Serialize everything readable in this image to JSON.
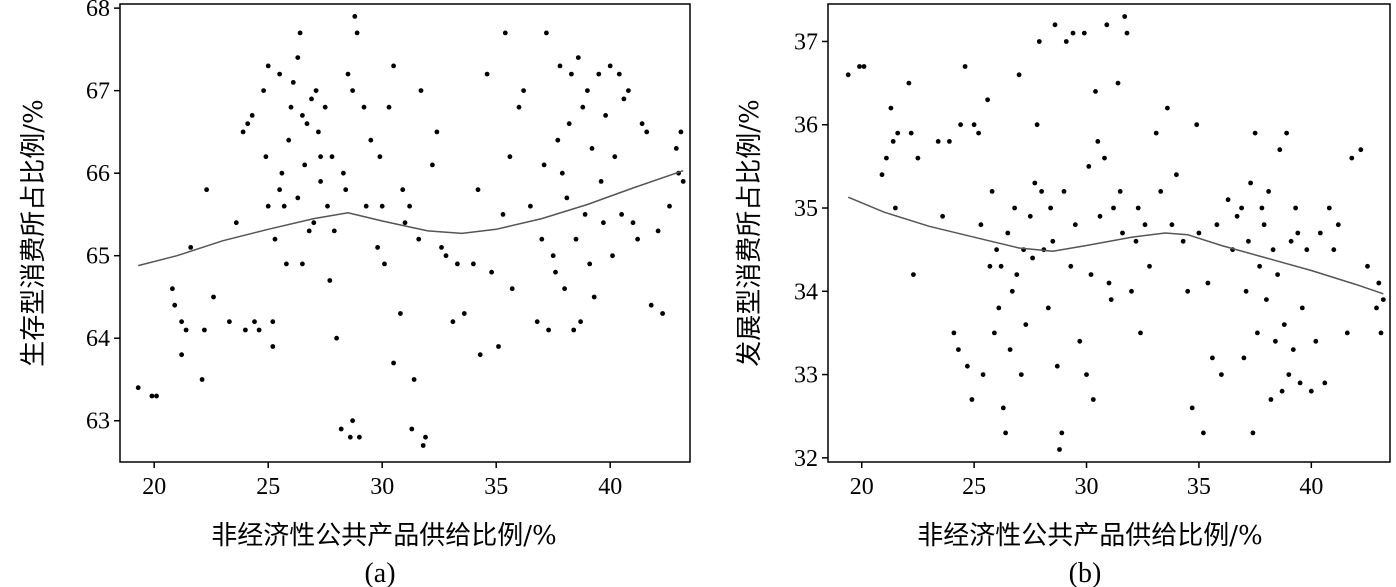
{
  "chart_data": [
    {
      "type": "scatter",
      "panel_label": "(a)",
      "xlabel": "非经济性公共产品供给比例/%",
      "ylabel": "生存型消费所占比例/%",
      "xlim": [
        18.5,
        43.5
      ],
      "ylim": [
        62.5,
        68.05
      ],
      "x_ticks": [
        20,
        25,
        30,
        35,
        40
      ],
      "y_ticks": [
        63,
        64,
        65,
        66,
        67,
        68
      ],
      "grid": false,
      "points": [
        [
          19.3,
          63.4
        ],
        [
          19.9,
          63.3
        ],
        [
          20.1,
          63.3
        ],
        [
          20.8,
          64.6
        ],
        [
          20.9,
          64.4
        ],
        [
          21.2,
          64.2
        ],
        [
          21.4,
          64.1
        ],
        [
          21.2,
          63.8
        ],
        [
          21.6,
          65.1
        ],
        [
          22.2,
          64.1
        ],
        [
          22.3,
          65.8
        ],
        [
          22.1,
          63.5
        ],
        [
          22.6,
          64.5
        ],
        [
          23.3,
          64.2
        ],
        [
          23.6,
          65.4
        ],
        [
          24.0,
          64.1
        ],
        [
          23.9,
          66.5
        ],
        [
          24.1,
          66.6
        ],
        [
          24.3,
          66.7
        ],
        [
          24.4,
          64.2
        ],
        [
          24.6,
          64.1
        ],
        [
          24.8,
          67.0
        ],
        [
          24.9,
          66.2
        ],
        [
          25.0,
          65.6
        ],
        [
          25.0,
          67.3
        ],
        [
          25.2,
          64.2
        ],
        [
          25.3,
          65.2
        ],
        [
          25.2,
          63.9
        ],
        [
          25.5,
          65.8
        ],
        [
          25.6,
          66.0
        ],
        [
          25.5,
          67.2
        ],
        [
          25.7,
          65.6
        ],
        [
          25.8,
          64.9
        ],
        [
          25.9,
          66.4
        ],
        [
          26.0,
          66.8
        ],
        [
          26.1,
          67.1
        ],
        [
          26.3,
          67.4
        ],
        [
          26.3,
          65.7
        ],
        [
          26.4,
          67.7
        ],
        [
          26.5,
          66.7
        ],
        [
          26.6,
          66.1
        ],
        [
          26.5,
          64.9
        ],
        [
          26.7,
          66.6
        ],
        [
          26.8,
          65.3
        ],
        [
          26.9,
          66.9
        ],
        [
          27.0,
          65.4
        ],
        [
          27.1,
          67.0
        ],
        [
          27.2,
          66.5
        ],
        [
          27.3,
          66.2
        ],
        [
          27.3,
          65.9
        ],
        [
          27.5,
          66.8
        ],
        [
          27.6,
          65.6
        ],
        [
          27.7,
          64.7
        ],
        [
          27.8,
          66.2
        ],
        [
          27.9,
          65.3
        ],
        [
          28.0,
          64.0
        ],
        [
          28.2,
          62.9
        ],
        [
          28.3,
          66.0
        ],
        [
          28.4,
          65.8
        ],
        [
          28.5,
          67.2
        ],
        [
          28.7,
          67.0
        ],
        [
          28.8,
          67.9
        ],
        [
          28.9,
          67.7
        ],
        [
          28.6,
          62.8
        ],
        [
          28.7,
          63.0
        ],
        [
          29.0,
          62.8
        ],
        [
          29.2,
          66.8
        ],
        [
          29.3,
          65.6
        ],
        [
          29.5,
          66.4
        ],
        [
          29.8,
          65.1
        ],
        [
          29.9,
          66.2
        ],
        [
          30.0,
          65.6
        ],
        [
          30.1,
          64.9
        ],
        [
          30.3,
          66.8
        ],
        [
          30.5,
          67.3
        ],
        [
          30.5,
          63.7
        ],
        [
          30.8,
          64.3
        ],
        [
          30.9,
          65.8
        ],
        [
          31.0,
          65.4
        ],
        [
          31.2,
          65.6
        ],
        [
          31.4,
          63.5
        ],
        [
          31.3,
          62.9
        ],
        [
          31.7,
          67.0
        ],
        [
          31.8,
          62.7
        ],
        [
          31.9,
          62.8
        ],
        [
          31.6,
          65.2
        ],
        [
          32.2,
          66.1
        ],
        [
          32.4,
          66.5
        ],
        [
          32.6,
          65.1
        ],
        [
          32.8,
          65.0
        ],
        [
          33.1,
          64.2
        ],
        [
          33.3,
          64.9
        ],
        [
          33.6,
          64.3
        ],
        [
          34.0,
          64.9
        ],
        [
          34.2,
          65.8
        ],
        [
          34.3,
          63.8
        ],
        [
          34.6,
          67.2
        ],
        [
          34.8,
          64.8
        ],
        [
          35.1,
          63.9
        ],
        [
          35.3,
          65.5
        ],
        [
          35.4,
          67.7
        ],
        [
          35.6,
          66.2
        ],
        [
          35.7,
          64.6
        ],
        [
          36.0,
          66.8
        ],
        [
          36.2,
          67.0
        ],
        [
          36.5,
          65.6
        ],
        [
          36.8,
          64.2
        ],
        [
          37.0,
          65.2
        ],
        [
          37.1,
          66.1
        ],
        [
          37.2,
          67.7
        ],
        [
          37.3,
          64.1
        ],
        [
          37.5,
          65.0
        ],
        [
          37.6,
          64.8
        ],
        [
          37.7,
          66.4
        ],
        [
          37.8,
          67.3
        ],
        [
          37.9,
          66.0
        ],
        [
          38.0,
          64.6
        ],
        [
          38.1,
          65.7
        ],
        [
          38.2,
          66.6
        ],
        [
          38.3,
          67.2
        ],
        [
          38.4,
          64.1
        ],
        [
          38.5,
          65.2
        ],
        [
          38.6,
          67.4
        ],
        [
          38.7,
          64.2
        ],
        [
          38.8,
          66.8
        ],
        [
          38.9,
          65.5
        ],
        [
          39.0,
          67.0
        ],
        [
          39.1,
          64.9
        ],
        [
          39.2,
          66.3
        ],
        [
          39.3,
          64.5
        ],
        [
          39.5,
          67.2
        ],
        [
          39.6,
          65.9
        ],
        [
          39.7,
          65.4
        ],
        [
          39.8,
          66.7
        ],
        [
          40.0,
          67.3
        ],
        [
          40.1,
          65.0
        ],
        [
          40.2,
          66.2
        ],
        [
          40.4,
          67.2
        ],
        [
          40.5,
          65.5
        ],
        [
          40.6,
          66.9
        ],
        [
          40.8,
          67.0
        ],
        [
          41.0,
          65.4
        ],
        [
          41.2,
          65.2
        ],
        [
          41.4,
          66.6
        ],
        [
          41.6,
          66.5
        ],
        [
          41.8,
          64.4
        ],
        [
          42.1,
          65.3
        ],
        [
          42.3,
          64.3
        ],
        [
          42.6,
          65.6
        ],
        [
          42.9,
          66.3
        ],
        [
          43.0,
          66.0
        ],
        [
          43.1,
          66.5
        ],
        [
          43.2,
          65.9
        ]
      ],
      "trend_line": [
        [
          19.3,
          64.88
        ],
        [
          21,
          65.0
        ],
        [
          23,
          65.18
        ],
        [
          25,
          65.32
        ],
        [
          27,
          65.45
        ],
        [
          28.5,
          65.52
        ],
        [
          30,
          65.42
        ],
        [
          32,
          65.3
        ],
        [
          33.5,
          65.27
        ],
        [
          35,
          65.32
        ],
        [
          37,
          65.45
        ],
        [
          39,
          65.62
        ],
        [
          41,
          65.82
        ],
        [
          43.2,
          66.03
        ]
      ]
    },
    {
      "type": "scatter",
      "panel_label": "(b)",
      "xlabel": "非经济性公共产品供给比例/%",
      "ylabel": "发展型消费所占比例/%",
      "xlim": [
        18.5,
        43.5
      ],
      "ylim": [
        31.95,
        37.45
      ],
      "x_ticks": [
        20,
        25,
        30,
        35,
        40
      ],
      "y_ticks": [
        32,
        33,
        34,
        35,
        36,
        37
      ],
      "grid": false,
      "points": [
        [
          19.4,
          36.6
        ],
        [
          19.9,
          36.7
        ],
        [
          20.1,
          36.7
        ],
        [
          20.9,
          35.4
        ],
        [
          21.1,
          35.6
        ],
        [
          21.3,
          36.2
        ],
        [
          21.4,
          35.8
        ],
        [
          21.6,
          35.9
        ],
        [
          22.1,
          36.5
        ],
        [
          22.3,
          34.2
        ],
        [
          22.5,
          35.6
        ],
        [
          22.2,
          35.9
        ],
        [
          21.5,
          35.0
        ],
        [
          23.4,
          35.8
        ],
        [
          23.6,
          34.9
        ],
        [
          23.9,
          35.8
        ],
        [
          24.1,
          33.5
        ],
        [
          24.3,
          33.3
        ],
        [
          24.4,
          36.0
        ],
        [
          24.6,
          36.7
        ],
        [
          24.7,
          33.1
        ],
        [
          24.9,
          32.7
        ],
        [
          25.0,
          36.0
        ],
        [
          25.2,
          35.9
        ],
        [
          25.3,
          34.8
        ],
        [
          25.4,
          33.0
        ],
        [
          25.6,
          36.3
        ],
        [
          25.7,
          34.3
        ],
        [
          25.8,
          35.2
        ],
        [
          25.9,
          33.5
        ],
        [
          26.0,
          34.5
        ],
        [
          26.1,
          33.8
        ],
        [
          26.2,
          34.3
        ],
        [
          26.3,
          32.6
        ],
        [
          26.4,
          32.3
        ],
        [
          26.5,
          34.7
        ],
        [
          26.6,
          33.3
        ],
        [
          26.7,
          34.0
        ],
        [
          26.8,
          35.0
        ],
        [
          26.9,
          34.2
        ],
        [
          27.0,
          36.6
        ],
        [
          27.1,
          33.0
        ],
        [
          27.2,
          34.5
        ],
        [
          27.3,
          33.6
        ],
        [
          27.5,
          34.9
        ],
        [
          27.6,
          34.4
        ],
        [
          27.7,
          35.3
        ],
        [
          27.8,
          36.0
        ],
        [
          27.9,
          37.0
        ],
        [
          28.0,
          35.2
        ],
        [
          28.1,
          34.5
        ],
        [
          28.3,
          33.8
        ],
        [
          28.4,
          35.0
        ],
        [
          28.5,
          34.6
        ],
        [
          28.6,
          37.2
        ],
        [
          28.7,
          33.1
        ],
        [
          28.8,
          32.1
        ],
        [
          28.9,
          32.3
        ],
        [
          29.0,
          35.2
        ],
        [
          29.1,
          37.0
        ],
        [
          29.3,
          34.3
        ],
        [
          29.4,
          37.1
        ],
        [
          29.5,
          34.8
        ],
        [
          29.7,
          33.4
        ],
        [
          29.9,
          37.1
        ],
        [
          30.0,
          33.0
        ],
        [
          30.1,
          35.5
        ],
        [
          30.2,
          34.2
        ],
        [
          30.3,
          32.7
        ],
        [
          30.4,
          36.4
        ],
        [
          30.5,
          35.8
        ],
        [
          30.6,
          34.9
        ],
        [
          30.8,
          35.6
        ],
        [
          30.9,
          37.2
        ],
        [
          31.0,
          34.1
        ],
        [
          31.1,
          33.9
        ],
        [
          31.2,
          35.0
        ],
        [
          31.4,
          36.5
        ],
        [
          31.5,
          35.2
        ],
        [
          31.6,
          34.7
        ],
        [
          31.7,
          37.3
        ],
        [
          31.8,
          37.1
        ],
        [
          32.0,
          34.0
        ],
        [
          32.2,
          34.6
        ],
        [
          32.3,
          35.0
        ],
        [
          32.4,
          33.5
        ],
        [
          32.6,
          34.8
        ],
        [
          32.8,
          34.3
        ],
        [
          33.1,
          35.9
        ],
        [
          33.3,
          35.2
        ],
        [
          33.6,
          36.2
        ],
        [
          33.8,
          34.8
        ],
        [
          34.0,
          35.4
        ],
        [
          34.3,
          34.6
        ],
        [
          34.5,
          34.0
        ],
        [
          34.7,
          32.6
        ],
        [
          34.9,
          36.0
        ],
        [
          35.0,
          34.7
        ],
        [
          35.2,
          32.3
        ],
        [
          35.4,
          34.1
        ],
        [
          35.6,
          33.2
        ],
        [
          35.8,
          34.8
        ],
        [
          36.0,
          33.0
        ],
        [
          36.3,
          35.1
        ],
        [
          36.5,
          34.5
        ],
        [
          36.7,
          34.9
        ],
        [
          36.9,
          35.0
        ],
        [
          37.0,
          33.2
        ],
        [
          37.1,
          34.0
        ],
        [
          37.2,
          34.6
        ],
        [
          37.3,
          35.3
        ],
        [
          37.4,
          32.3
        ],
        [
          37.5,
          35.9
        ],
        [
          37.6,
          33.5
        ],
        [
          37.7,
          34.3
        ],
        [
          37.8,
          35.0
        ],
        [
          37.9,
          34.8
        ],
        [
          38.0,
          33.9
        ],
        [
          38.1,
          35.2
        ],
        [
          38.2,
          32.7
        ],
        [
          38.3,
          34.5
        ],
        [
          38.4,
          33.4
        ],
        [
          38.5,
          34.2
        ],
        [
          38.6,
          35.7
        ],
        [
          38.7,
          32.8
        ],
        [
          38.8,
          33.6
        ],
        [
          38.9,
          35.9
        ],
        [
          39.0,
          33.0
        ],
        [
          39.1,
          34.6
        ],
        [
          39.2,
          33.3
        ],
        [
          39.3,
          35.0
        ],
        [
          39.4,
          34.7
        ],
        [
          39.5,
          32.9
        ],
        [
          39.6,
          33.8
        ],
        [
          39.8,
          34.5
        ],
        [
          40.0,
          32.8
        ],
        [
          40.2,
          33.4
        ],
        [
          40.4,
          34.7
        ],
        [
          40.6,
          32.9
        ],
        [
          40.8,
          35.0
        ],
        [
          41.0,
          34.5
        ],
        [
          41.2,
          34.8
        ],
        [
          41.6,
          33.5
        ],
        [
          41.8,
          35.6
        ],
        [
          42.2,
          35.7
        ],
        [
          42.5,
          34.3
        ],
        [
          42.9,
          33.8
        ],
        [
          43.0,
          34.1
        ],
        [
          43.1,
          33.5
        ],
        [
          43.2,
          33.9
        ]
      ],
      "trend_line": [
        [
          19.4,
          35.13
        ],
        [
          21,
          34.95
        ],
        [
          23,
          34.78
        ],
        [
          25,
          34.65
        ],
        [
          27,
          34.52
        ],
        [
          28.5,
          34.48
        ],
        [
          30,
          34.55
        ],
        [
          32,
          34.65
        ],
        [
          33.5,
          34.7
        ],
        [
          34.5,
          34.68
        ],
        [
          36,
          34.55
        ],
        [
          38,
          34.4
        ],
        [
          40,
          34.25
        ],
        [
          42,
          34.08
        ],
        [
          43.2,
          33.97
        ]
      ]
    }
  ]
}
